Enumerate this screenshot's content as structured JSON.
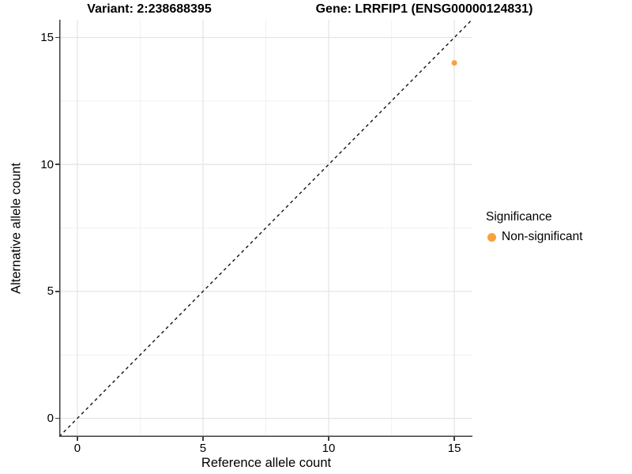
{
  "titles": {
    "variant": "Variant: 2:238688395",
    "gene": "Gene: LRRFIP1 (ENSG00000124831)"
  },
  "chart_data": {
    "type": "scatter",
    "xlabel": "Reference allele count",
    "ylabel": "Alternative allele count",
    "x_ticks": [
      0,
      5,
      10,
      15
    ],
    "y_ticks": [
      0,
      5,
      10,
      15
    ],
    "x_minor_ticks": [
      2.5,
      7.5,
      12.5
    ],
    "y_minor_ticks": [
      2.5,
      7.5,
      12.5
    ],
    "xlim": [
      -0.72,
      15.72
    ],
    "ylim": [
      -0.73,
      15.7
    ],
    "grid": true,
    "points": [
      {
        "x": 15,
        "y": 14,
        "series": "Non-significant"
      }
    ],
    "identity_line": {
      "slope": 1,
      "intercept": 0,
      "style": "dashed"
    },
    "legend": {
      "title": "Significance",
      "position": "right",
      "entries": [
        {
          "label": "Non-significant",
          "color": "#F9A13A"
        }
      ]
    }
  },
  "colors": {
    "point": "#F9A13A",
    "grid_major": "#E5E5E5",
    "grid_minor": "#F1F1F1",
    "axis": "#3F3F3F",
    "dashed_line": "#111111"
  }
}
